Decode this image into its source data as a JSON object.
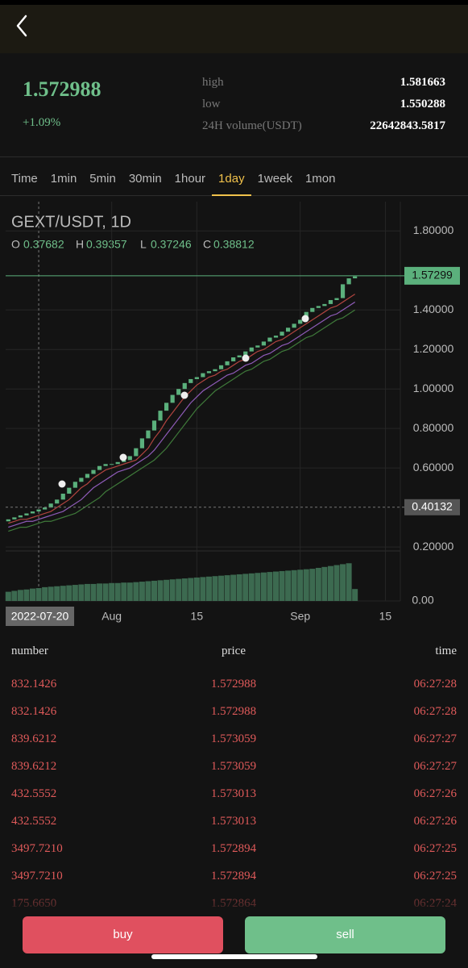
{
  "summary": {
    "price": "1.572988",
    "change": "+1.09%",
    "stats": [
      {
        "label": "high",
        "value": "1.581663"
      },
      {
        "label": "low",
        "value": "1.550288"
      },
      {
        "label": "24H volume(USDT)",
        "value": "22642843.5817"
      }
    ]
  },
  "tabs": {
    "items": [
      "Time",
      "1min",
      "5min",
      "30min",
      "1hour",
      "1day",
      "1week",
      "1mon"
    ],
    "active": 5
  },
  "chart_data": {
    "type": "candlestick",
    "title": "GEXT/USDT, 1D",
    "info": [
      {
        "label": "O",
        "value": "0.37682"
      },
      {
        "label": "H",
        "value": "0.39357"
      },
      {
        "label": "L",
        "value": "0.37246"
      },
      {
        "label": "C",
        "value": "0.38812"
      }
    ],
    "categories": [
      null,
      null,
      null,
      null,
      null,
      "2022-07-20",
      null,
      null,
      null,
      null,
      null,
      null,
      null,
      null,
      null,
      null,
      null,
      "Aug",
      null,
      null,
      null,
      null,
      null,
      null,
      null,
      null,
      null,
      null,
      null,
      null,
      null,
      "15",
      null,
      null,
      null,
      null,
      null,
      null,
      null,
      null,
      null,
      null,
      null,
      null,
      null,
      null,
      null,
      null,
      "Sep",
      null,
      null,
      null,
      null,
      null,
      null,
      null,
      null,
      null,
      null,
      null,
      null,
      null,
      "15",
      null,
      null
    ],
    "open": [
      0.33,
      0.34,
      0.35,
      0.36,
      0.37,
      0.38,
      0.39,
      0.4,
      0.42,
      0.44,
      0.47,
      0.5,
      0.53,
      0.55,
      0.57,
      0.59,
      0.61,
      0.62,
      0.62,
      0.63,
      0.64,
      0.66,
      0.7,
      0.75,
      0.79,
      0.84,
      0.89,
      0.93,
      0.97,
      1.0,
      1.03,
      1.05,
      1.06,
      1.08,
      1.09,
      1.1,
      1.12,
      1.14,
      1.16,
      1.17,
      1.19,
      1.21,
      1.22,
      1.24,
      1.26,
      1.27,
      1.29,
      1.31,
      1.33,
      1.35,
      1.39,
      1.41,
      1.42,
      1.43,
      1.45,
      1.46,
      1.53,
      1.56,
      null,
      null,
      null,
      null,
      null,
      null,
      null
    ],
    "close": [
      0.34,
      0.35,
      0.36,
      0.37,
      0.38,
      0.39,
      0.4,
      0.42,
      0.44,
      0.47,
      0.5,
      0.53,
      0.55,
      0.57,
      0.59,
      0.61,
      0.62,
      0.62,
      0.63,
      0.64,
      0.66,
      0.7,
      0.75,
      0.79,
      0.84,
      0.89,
      0.93,
      0.97,
      1.0,
      1.03,
      1.05,
      1.06,
      1.08,
      1.09,
      1.1,
      1.12,
      1.14,
      1.16,
      1.17,
      1.19,
      1.21,
      1.22,
      1.24,
      1.26,
      1.27,
      1.29,
      1.31,
      1.33,
      1.35,
      1.39,
      1.41,
      1.42,
      1.43,
      1.45,
      1.46,
      1.53,
      1.56,
      1.57,
      null,
      null,
      null,
      null,
      null,
      null,
      null
    ],
    "up_color": "#5bb07c",
    "down_color": "#e0505f",
    "series": [
      {
        "color": "#b0443f",
        "values": [
          0.32,
          0.33,
          0.34,
          0.34,
          0.35,
          0.36,
          0.37,
          0.38,
          0.4,
          0.42,
          0.44,
          0.47,
          0.5,
          0.52,
          0.55,
          0.57,
          0.59,
          0.6,
          0.61,
          0.62,
          0.63,
          0.64,
          0.67,
          0.7,
          0.75,
          0.79,
          0.84,
          0.88,
          0.92,
          0.96,
          0.99,
          1.02,
          1.04,
          1.06,
          1.07,
          1.09,
          1.1,
          1.12,
          1.14,
          1.15,
          1.17,
          1.19,
          1.2,
          1.22,
          1.24,
          1.25,
          1.27,
          1.29,
          1.31,
          1.33,
          1.35,
          1.37,
          1.39,
          1.41,
          1.42,
          1.44,
          1.46,
          1.48,
          null,
          null,
          null,
          null,
          null,
          null,
          null
        ]
      },
      {
        "color": "#8e5bb8",
        "values": [
          0.3,
          0.31,
          0.32,
          0.33,
          0.33,
          0.34,
          0.35,
          0.36,
          0.37,
          0.38,
          0.4,
          0.42,
          0.44,
          0.47,
          0.5,
          0.52,
          0.54,
          0.56,
          0.58,
          0.59,
          0.6,
          0.62,
          0.64,
          0.66,
          0.69,
          0.73,
          0.77,
          0.81,
          0.85,
          0.89,
          0.93,
          0.96,
          0.99,
          1.01,
          1.03,
          1.05,
          1.07,
          1.08,
          1.1,
          1.12,
          1.13,
          1.15,
          1.17,
          1.18,
          1.2,
          1.22,
          1.23,
          1.25,
          1.27,
          1.29,
          1.31,
          1.33,
          1.35,
          1.37,
          1.38,
          1.4,
          1.42,
          1.44,
          null,
          null,
          null,
          null,
          null,
          null,
          null
        ]
      },
      {
        "color": "#3f7a3a",
        "values": [
          0.28,
          0.29,
          0.3,
          0.3,
          0.31,
          0.32,
          0.33,
          0.33,
          0.34,
          0.35,
          0.36,
          0.37,
          0.39,
          0.41,
          0.43,
          0.45,
          0.48,
          0.5,
          0.52,
          0.54,
          0.56,
          0.58,
          0.6,
          0.62,
          0.64,
          0.67,
          0.7,
          0.74,
          0.78,
          0.82,
          0.86,
          0.9,
          0.93,
          0.96,
          0.99,
          1.01,
          1.03,
          1.05,
          1.07,
          1.09,
          1.1,
          1.12,
          1.14,
          1.15,
          1.17,
          1.19,
          1.2,
          1.22,
          1.24,
          1.26,
          1.27,
          1.29,
          1.31,
          1.33,
          1.35,
          1.36,
          1.38,
          1.4,
          null,
          null,
          null,
          null,
          null,
          null,
          null
        ]
      }
    ],
    "volume": [
      20,
      22,
      24,
      25,
      27,
      28,
      30,
      31,
      32,
      33,
      34,
      35,
      36,
      37,
      37,
      38,
      38,
      39,
      39,
      40,
      40,
      41,
      42,
      43,
      44,
      45,
      46,
      47,
      48,
      49,
      50,
      51,
      52,
      53,
      54,
      55,
      56,
      57,
      58,
      59,
      60,
      61,
      62,
      63,
      64,
      65,
      66,
      67,
      68,
      69,
      70,
      72,
      74,
      76,
      78,
      80,
      82,
      26,
      null,
      null,
      null,
      null,
      null,
      null,
      null
    ],
    "volume_color": "#3c6a50",
    "volume_ylim": [
      0,
      100
    ],
    "volume_yticks": [
      {
        "value": 0,
        "label": "0.00"
      }
    ],
    "ylim": [
      0.18,
      1.94
    ],
    "yticks": [
      {
        "value": 0.2,
        "label": "0.20000"
      },
      {
        "value": 0.6,
        "label": "0.60000"
      },
      {
        "value": 0.8,
        "label": "0.80000"
      },
      {
        "value": 1.0,
        "label": "1.00000"
      },
      {
        "value": 1.2,
        "label": "1.20000"
      },
      {
        "value": 1.4,
        "label": "1.40000"
      },
      {
        "value": 1.8,
        "label": "1.80000"
      }
    ],
    "grid": true,
    "last_price": {
      "value": 1.57299,
      "label": "1.57299"
    },
    "crosshair": {
      "value": 0.40132,
      "label": "0.40132"
    }
  },
  "trades": {
    "columns": [
      "number",
      "price",
      "time"
    ],
    "rows": [
      [
        "832.1426",
        "1.572988",
        "06:27:28"
      ],
      [
        "832.1426",
        "1.572988",
        "06:27:28"
      ],
      [
        "839.6212",
        "1.573059",
        "06:27:27"
      ],
      [
        "839.6212",
        "1.573059",
        "06:27:27"
      ],
      [
        "432.5552",
        "1.573013",
        "06:27:26"
      ],
      [
        "432.5552",
        "1.573013",
        "06:27:26"
      ],
      [
        "3497.7210",
        "1.572894",
        "06:27:25"
      ],
      [
        "3497.7210",
        "1.572894",
        "06:27:25"
      ],
      [
        "175.6650",
        "1.572864",
        "06:27:24"
      ]
    ]
  },
  "actions": {
    "buy": "buy",
    "sell": "sell"
  }
}
